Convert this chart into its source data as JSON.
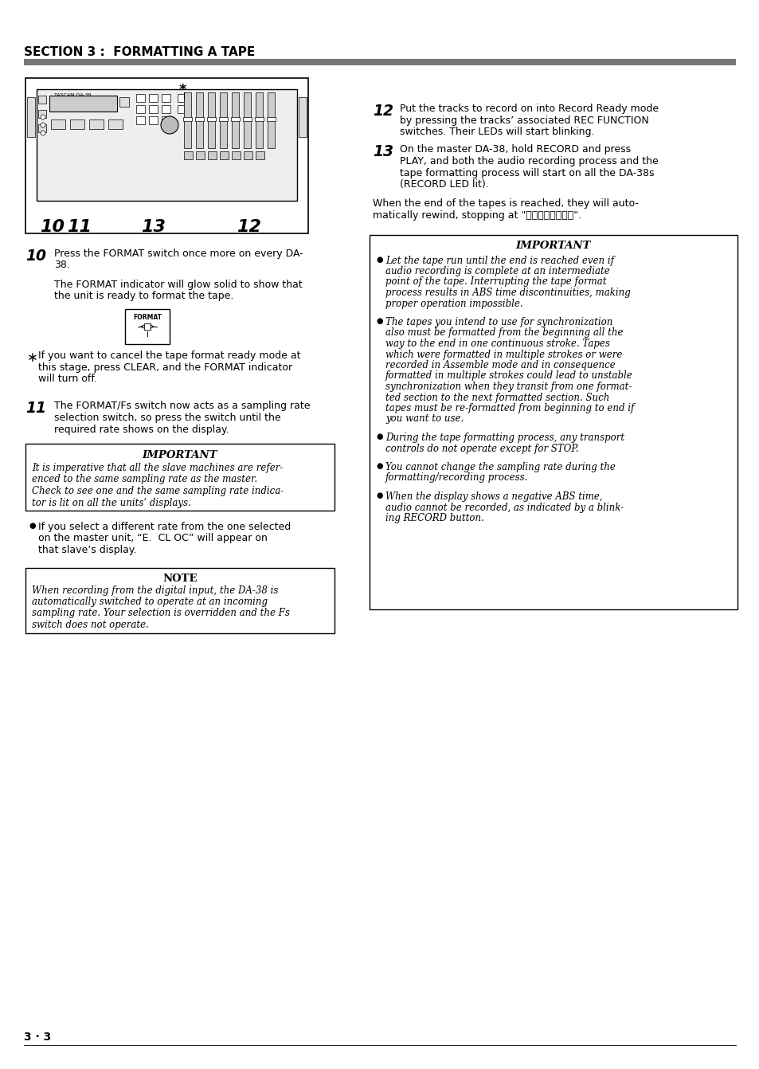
{
  "section_title": "SECTION 3 :  FORMATTING A TAPE",
  "page_number": "3 · 3",
  "bg_color": "#ffffff",
  "step12_num": "12",
  "step12_lines": [
    "Put the tracks to record on into Record Ready mode",
    "by pressing the tracks’ associated REC FUNCTION",
    "switches. Their LEDs will start blinking."
  ],
  "step13_num": "13",
  "step13_lines": [
    "On the master DA-38, hold RECORD and press",
    "PLAY, and both the audio recording process and the",
    "tape formatting process will start on all the DA-38s",
    "(RECORD LED lit)."
  ],
  "step13_sub_lines": [
    "When the end of the tapes is reached, they will auto-",
    "matically rewind, stopping at \"\u0000\u0000\u0000\u0000\u0000\u0000\u0000\u0000\"."
  ],
  "important_right_title": "IMPORTANT",
  "important_right_bullet1_lines": [
    "Let the tape run until the end is reached even if",
    "audio recording is complete at an intermediate",
    "point of the tape. Interrupting the tape format",
    "process results in ABS time discontinuities, making",
    "proper operation impossible."
  ],
  "important_right_bullet2_lines": [
    "The tapes you intend to use for synchronization",
    "also must be formatted from the beginning all the",
    "way to the end in one continuous stroke. Tapes",
    "which were formatted in multiple strokes or were",
    "recorded in Assemble mode and in consequence",
    "formatted in multiple strokes could lead to unstable",
    "synchronization when they transit from one format-",
    "ted section to the next formatted section. Such",
    "tapes must be re-formatted from beginning to end if",
    "you want to use."
  ],
  "important_right_bullet3_lines": [
    "During the tape formatting process, any transport",
    "controls do not operate except for STOP."
  ],
  "important_right_bullet4_lines": [
    "You cannot change the sampling rate during the",
    "formatting/recording process."
  ],
  "important_right_bullet5_lines": [
    "When the display shows a negative ABS time,",
    "audio cannot be recorded, as indicated by a blink-",
    "ing RECORD button."
  ],
  "step10_num": "10",
  "step10_lines": [
    "Press the FORMAT switch once more on every DA-",
    "38."
  ],
  "step10_sub_lines": [
    "The FORMAT indicator will glow solid to show that",
    "the unit is ready to format the tape."
  ],
  "asterisk_lines": [
    "If you want to cancel the tape format ready mode at",
    "this stage, press CLEAR, and the FORMAT indicator",
    "will turn off."
  ],
  "step11_num": "11",
  "step11_lines": [
    "The FORMAT/Fs switch now acts as a sampling rate",
    "selection switch, so press the switch until the",
    "required rate shows on the display."
  ],
  "important_left_title": "IMPORTANT",
  "important_left_lines": [
    "It is imperative that all the slave machines are refer-",
    "enced to the same sampling rate as the master.",
    "Check to see one and the same sampling rate indica-",
    "tor is lit on all the units’ displays."
  ],
  "bullet_slave_lines": [
    "If you select a different rate from the one selected",
    "on the master unit, “E.  CL OC” will appear on",
    "that slave’s display."
  ],
  "note_title": "NOTE",
  "note_lines": [
    "When recording from the digital input, the DA-38 is",
    "automatically switched to operate at an incoming",
    "sampling rate. Your selection is overridden and the Fs",
    "switch does not operate."
  ]
}
